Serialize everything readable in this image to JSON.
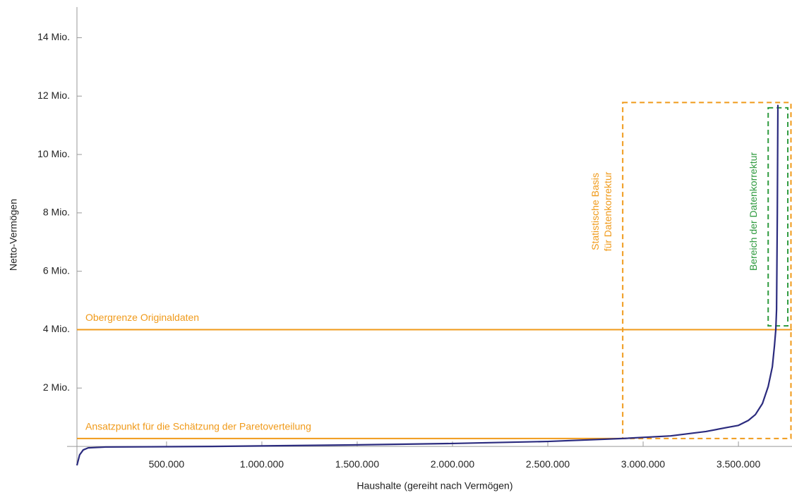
{
  "chart_data": {
    "type": "line",
    "xlabel": "Haushalte (gereiht nach Vermögen)",
    "ylabel": "Netto-Vermögen",
    "x": [
      30000,
      44000,
      63000,
      89000,
      181000,
      737000,
      1478000,
      2000000,
      2500000,
      2893000,
      3144000,
      3330000,
      3441000,
      3500000,
      3552000,
      3589000,
      3626000,
      3656000,
      3678000,
      3689000,
      3696000,
      3700000,
      3704000,
      3707000
    ],
    "series": [
      {
        "color": "#2b2b7e",
        "values": [
          -650000,
          -290000,
          -120000,
          -50000,
          -20000,
          0,
          50000,
          100000,
          170000,
          270000,
          360000,
          510000,
          650000,
          720000,
          890000,
          1090000,
          1470000,
          2050000,
          2730000,
          3450000,
          4000000,
          4700000,
          8000000,
          11700000
        ]
      }
    ],
    "xlim": [
      30000,
      3781000
    ],
    "ylim": [
      -650000,
      15050000
    ],
    "xticks": [
      {
        "value": 500000,
        "label": "500.000"
      },
      {
        "value": 1000000,
        "label": "1.000.000"
      },
      {
        "value": 1500000,
        "label": "1.500.000"
      },
      {
        "value": 2000000,
        "label": "2.000.000"
      },
      {
        "value": 2500000,
        "label": "2.500.000"
      },
      {
        "value": 3000000,
        "label": "3.000.000"
      },
      {
        "value": 3500000,
        "label": "3.500.000"
      }
    ],
    "yticks": [
      {
        "value": 2000000,
        "label": "2 Mio."
      },
      {
        "value": 4000000,
        "label": "4 Mio."
      },
      {
        "value": 6000000,
        "label": "6 Mio."
      },
      {
        "value": 8000000,
        "label": "8 Mio."
      },
      {
        "value": 10000000,
        "label": "10 Mio."
      },
      {
        "value": 12000000,
        "label": "12 Mio."
      },
      {
        "value": 14000000,
        "label": "14 Mio."
      }
    ],
    "annotations": [
      {
        "text": "Obergrenze Originaldaten",
        "y": 4000000,
        "color": "#f09a1a"
      },
      {
        "text": "Ansatzpunkt für die Schätzung der Paretoverteilung",
        "y": 270000,
        "color": "#f09a1a"
      }
    ],
    "regions": [
      {
        "text": [
          "Statistische Basis",
          "für Datenkorrektur"
        ],
        "x": [
          2893000,
          3781000
        ],
        "y": [
          270000,
          11780000
        ],
        "color": "#f09a1a"
      },
      {
        "text": [
          "Bereich der Datenkorrektur"
        ],
        "x": [
          3656000,
          3759000
        ],
        "y": [
          4130000,
          11600000
        ],
        "color": "#2e9a3e"
      }
    ]
  }
}
